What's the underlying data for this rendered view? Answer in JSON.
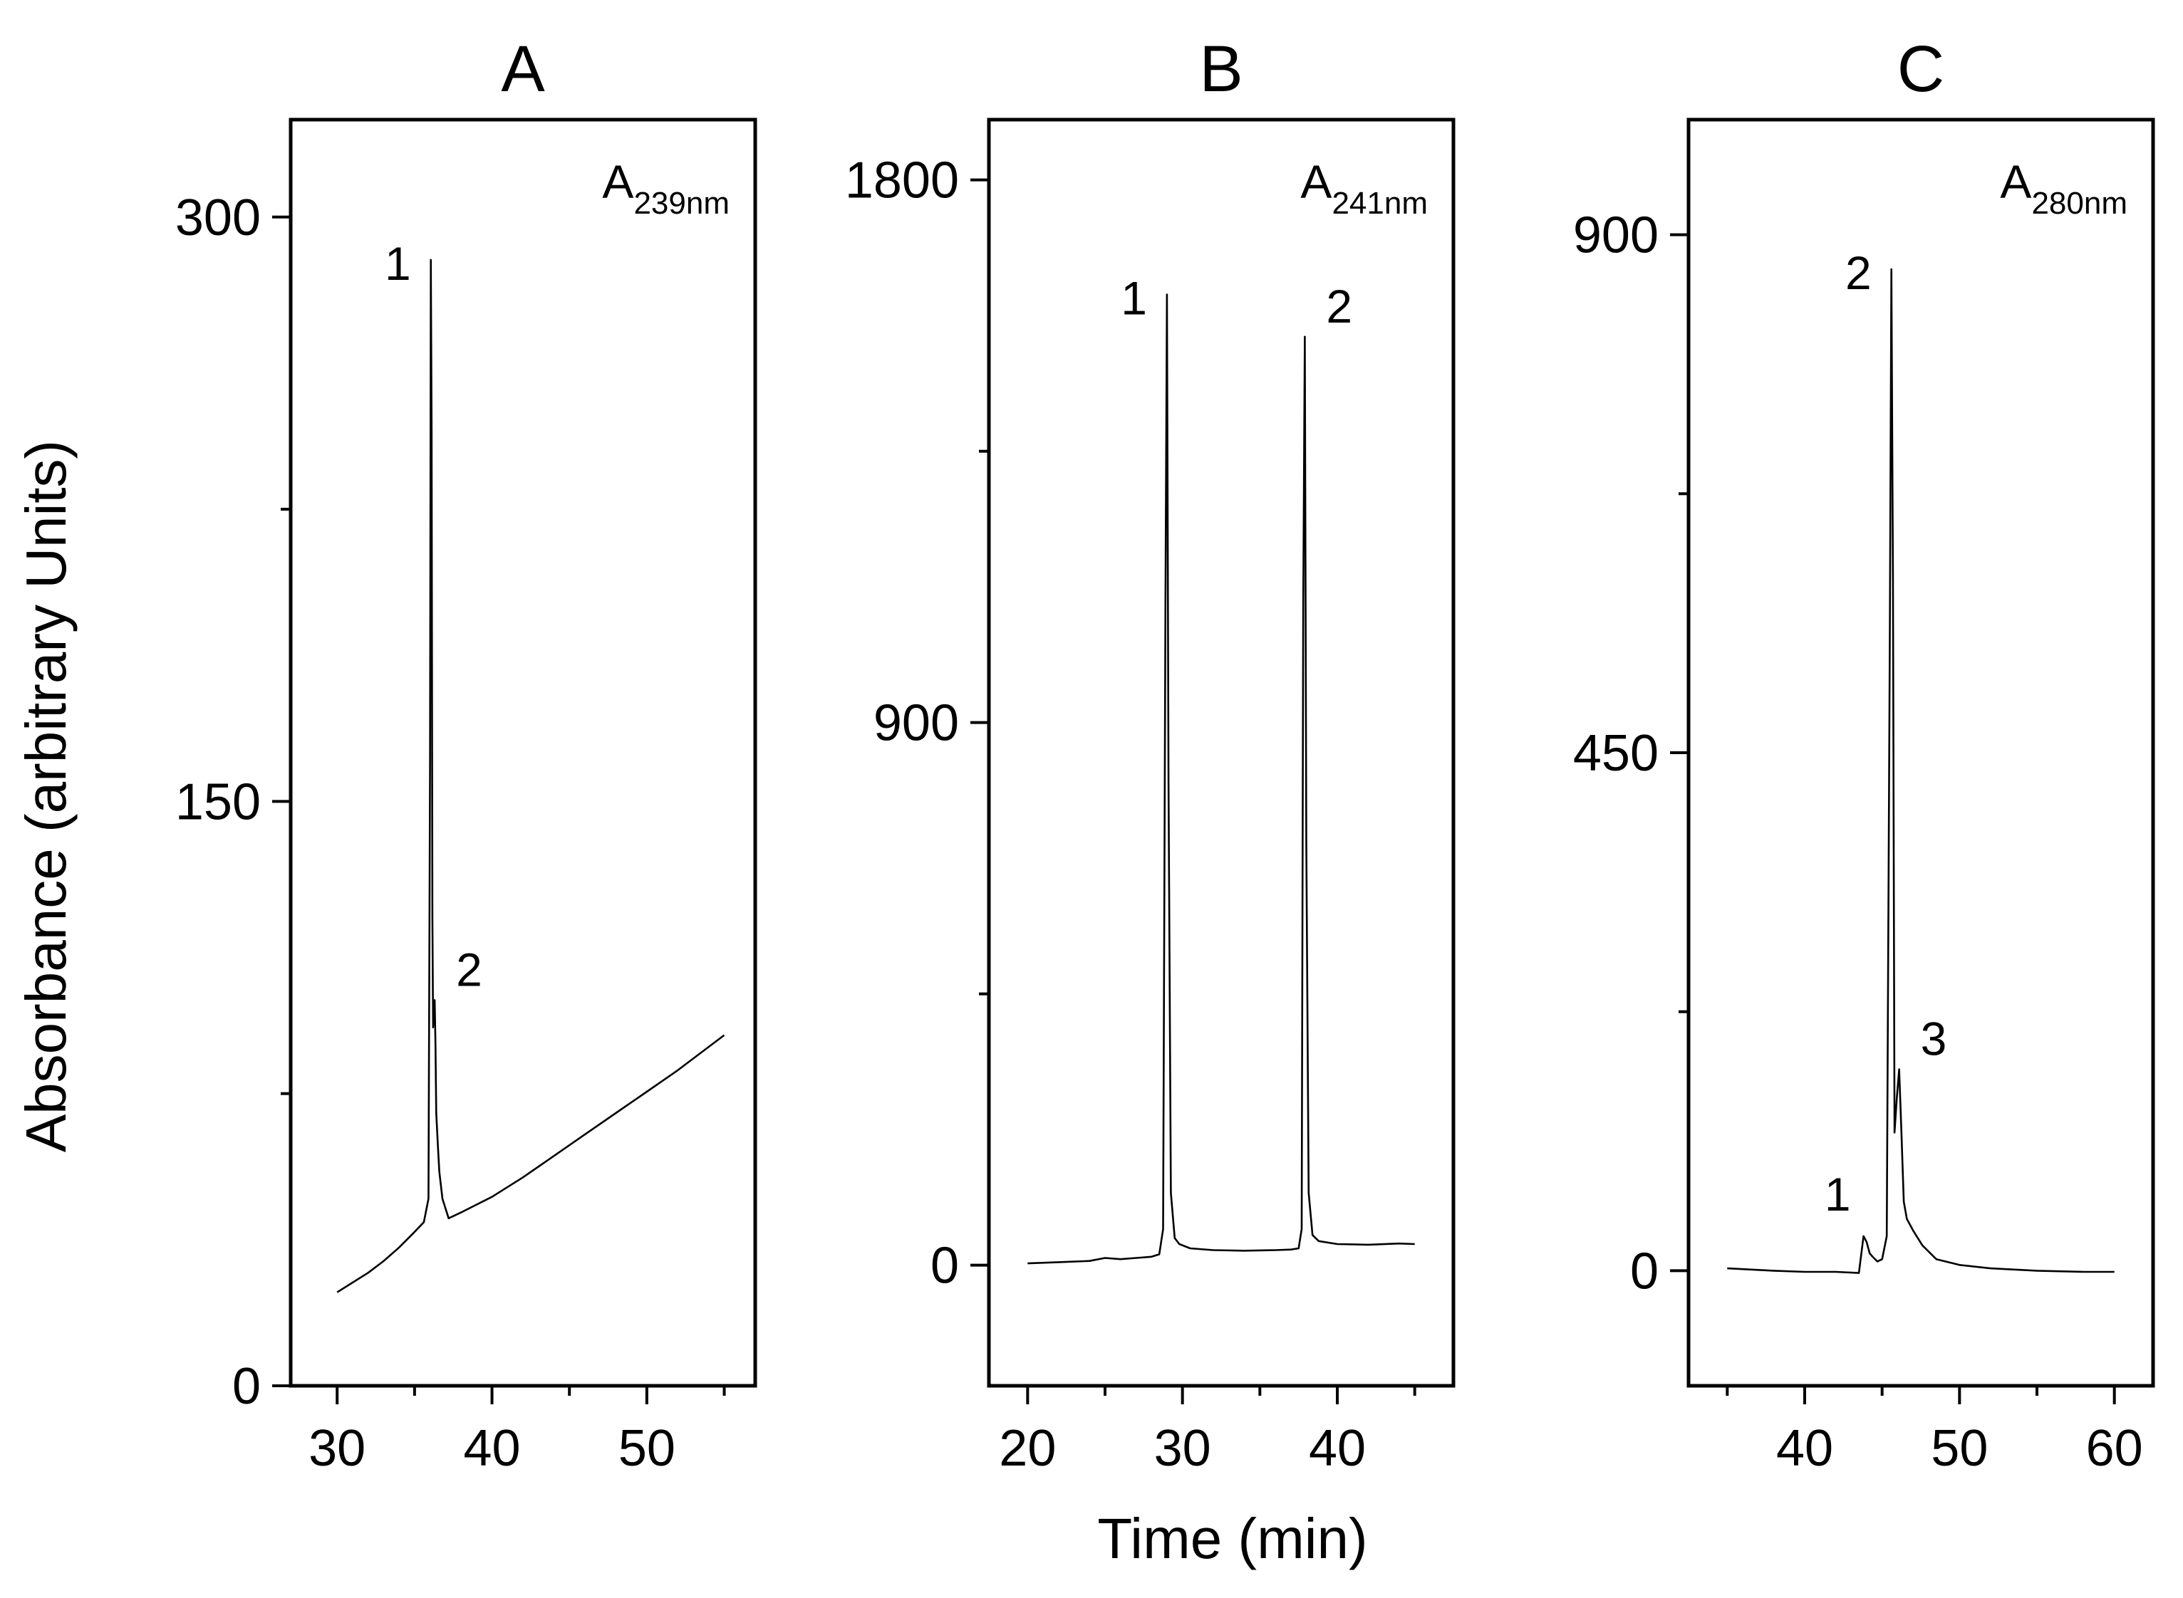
{
  "figure": {
    "y_axis_label": "Absorbance (arbitrary Units)",
    "x_axis_label": "Time (min)"
  },
  "chart_data": [
    {
      "type": "line",
      "panel": "A",
      "title": "A",
      "wavelength_label": {
        "main": "A",
        "sub": "239nm"
      },
      "xlim": [
        27,
        57
      ],
      "ylim": [
        0,
        325
      ],
      "xticks_major": [
        30,
        40,
        50
      ],
      "xticks_minor": [
        35,
        45,
        55
      ],
      "yticks_major": [
        0,
        150,
        300
      ],
      "yticks_minor": [
        75,
        225
      ],
      "series": [
        {
          "name": "A239nm",
          "x": [
            30,
            31,
            32,
            33,
            34,
            35,
            35.6,
            35.9,
            36.0,
            36.05,
            36.1,
            36.15,
            36.2,
            36.25,
            36.3,
            36.35,
            36.4,
            36.5,
            36.6,
            36.8,
            37.2,
            38,
            39,
            40,
            42,
            44,
            46,
            48,
            50,
            52,
            54,
            55
          ],
          "y": [
            24,
            26.5,
            29,
            32,
            35.5,
            39.5,
            42,
            48,
            160,
            289,
            245,
            120,
            92,
            97,
            99,
            88,
            70,
            62,
            55,
            48,
            43,
            44.5,
            46.5,
            48.5,
            53.5,
            59,
            64.5,
            70,
            75.5,
            81,
            87,
            90
          ]
        }
      ],
      "peaks": [
        {
          "label": "1",
          "x": 36.05,
          "y": 289
        },
        {
          "label": "2",
          "x": 36.3,
          "y": 99
        }
      ]
    },
    {
      "type": "line",
      "panel": "B",
      "title": "B",
      "wavelength_label": {
        "main": "A",
        "sub": "241nm"
      },
      "xlim": [
        17.5,
        47.5
      ],
      "ylim": [
        -200,
        1900
      ],
      "xticks_major": [
        20,
        30,
        40
      ],
      "xticks_minor": [
        25,
        35,
        45
      ],
      "yticks_major": [
        0,
        900,
        1800
      ],
      "yticks_minor": [
        450,
        1350
      ],
      "series": [
        {
          "name": "A241nm",
          "x": [
            20,
            22,
            24,
            25,
            26,
            27,
            28,
            28.5,
            28.75,
            28.9,
            29.0,
            29.1,
            29.25,
            29.5,
            29.8,
            30.5,
            32,
            34,
            36,
            37,
            37.5,
            37.7,
            37.8,
            37.9,
            38.0,
            38.15,
            38.4,
            38.8,
            40,
            42,
            44,
            45
          ],
          "y": [
            3,
            5,
            7,
            12,
            10,
            12,
            14,
            18,
            60,
            1100,
            1610,
            800,
            120,
            45,
            35,
            28,
            25,
            24,
            25,
            26,
            28,
            60,
            1100,
            1540,
            700,
            120,
            50,
            40,
            35,
            34,
            36,
            35
          ]
        }
      ],
      "peaks": [
        {
          "label": "1",
          "x": 29.0,
          "y": 1610
        },
        {
          "label": "2",
          "x": 37.9,
          "y": 1540
        }
      ]
    },
    {
      "type": "line",
      "panel": "C",
      "title": "C",
      "wavelength_label": {
        "main": "A",
        "sub": "280nm"
      },
      "xlim": [
        32.5,
        62.5
      ],
      "ylim": [
        -100,
        1000
      ],
      "xticks_major": [
        40,
        50,
        60
      ],
      "xticks_minor": [
        35,
        45,
        55
      ],
      "yticks_major": [
        0,
        450,
        900
      ],
      "yticks_minor": [
        225,
        675
      ],
      "series": [
        {
          "name": "A280nm",
          "x": [
            35,
            38,
            40,
            42,
            43.5,
            43.8,
            44.0,
            44.2,
            44.4,
            44.7,
            45.0,
            45.3,
            45.5,
            45.6,
            45.7,
            45.8,
            45.95,
            46.1,
            46.25,
            46.4,
            46.6,
            47.0,
            47.6,
            48.5,
            50,
            52,
            55,
            58,
            60
          ],
          "y": [
            2,
            0,
            -1,
            -1,
            -2,
            30,
            25,
            15,
            12,
            8,
            10,
            30,
            550,
            870,
            600,
            120,
            150,
            175,
            120,
            60,
            45,
            35,
            22,
            10,
            5,
            2,
            0,
            -1,
            -1
          ]
        }
      ],
      "peaks": [
        {
          "label": "1",
          "x": 43.8,
          "y": 30
        },
        {
          "label": "2",
          "x": 45.6,
          "y": 870
        },
        {
          "label": "3",
          "x": 46.1,
          "y": 175
        }
      ]
    }
  ]
}
